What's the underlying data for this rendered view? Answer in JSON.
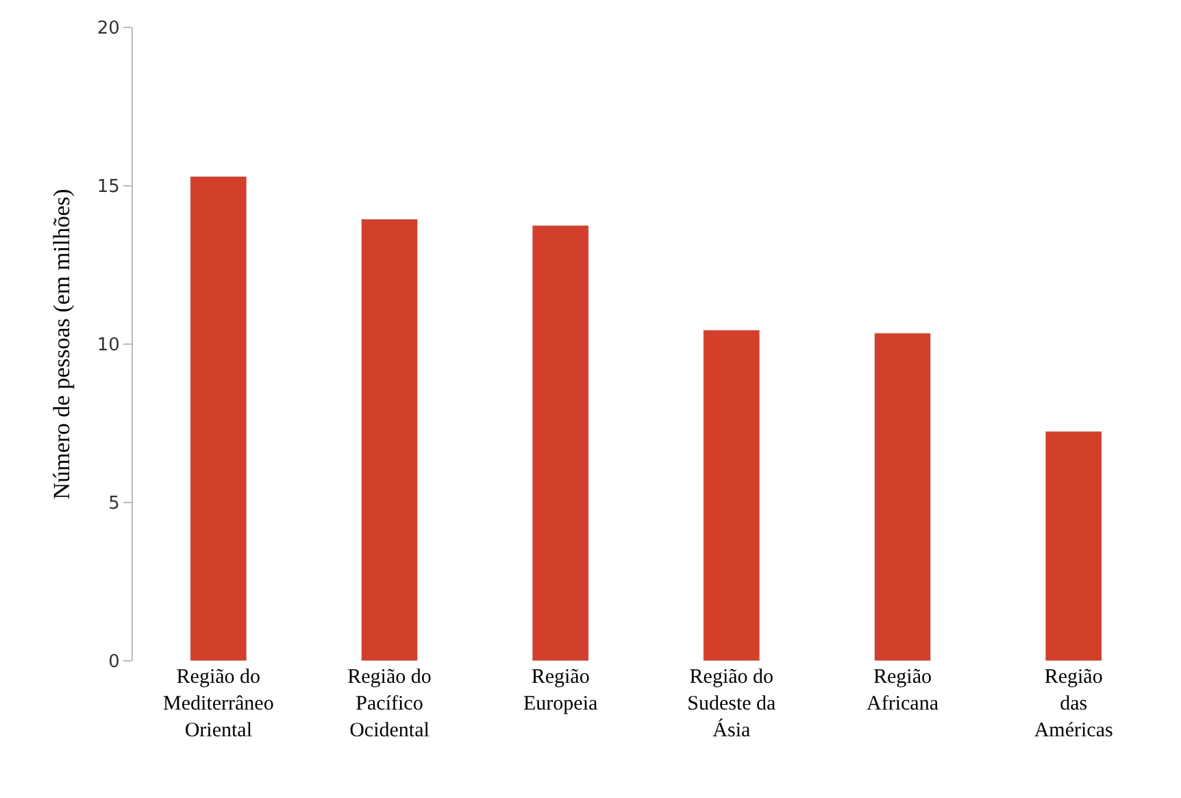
{
  "chart_data": {
    "type": "bar",
    "ylabel": "Número de pessoas (em milhões)",
    "categories": [
      "Região do\nMediterrâneo\nOriental",
      "Região do\nPacífico\nOcidental",
      "Região\nEuropeia",
      "Região do\nSudeste da\nÁsia",
      "Região\nAfricana",
      "Região\ndas\nAméricas"
    ],
    "values": [
      15.3,
      13.95,
      13.75,
      10.45,
      10.35,
      7.25
    ],
    "color": "#d23f2a",
    "ylim": [
      0,
      20
    ],
    "yticks": [
      0,
      5,
      10,
      15,
      20
    ]
  }
}
